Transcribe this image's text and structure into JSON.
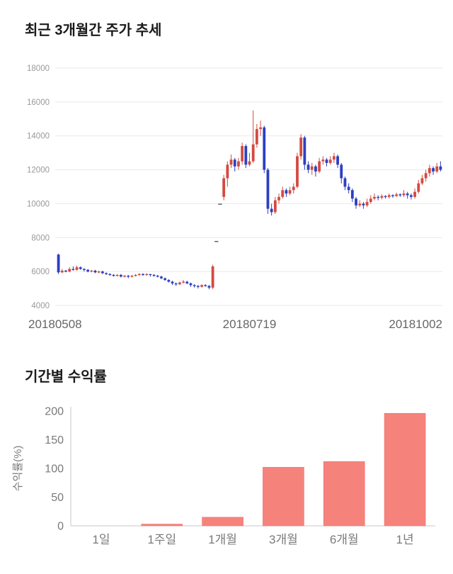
{
  "chart_data": [
    {
      "id": "price_trend",
      "type": "candlestick",
      "title": "최근 3개월간 주가 추세",
      "y_ticks": [
        4000,
        6000,
        8000,
        10000,
        12000,
        14000,
        16000,
        18000
      ],
      "y_range": [
        4000,
        18000
      ],
      "x_labels": [
        "20180508",
        "20180719",
        "20181002"
      ],
      "up_color": "#d24b41",
      "down_color": "#2d3fc0",
      "flat_color": "#555555",
      "grid_color": "#e9e9e9",
      "grid": true,
      "legend": "none",
      "candles": [
        [
          7000,
          7050,
          5850,
          5950
        ],
        [
          5950,
          6150,
          5900,
          6050
        ],
        [
          6050,
          6100,
          5950,
          6000
        ],
        [
          6000,
          6250,
          5950,
          6150
        ],
        [
          6150,
          6300,
          6050,
          6100
        ],
        [
          6100,
          6350,
          6050,
          6250
        ],
        [
          6250,
          6300,
          6100,
          6150
        ],
        [
          6150,
          6200,
          6000,
          6100
        ],
        [
          6100,
          6150,
          5950,
          6000
        ],
        [
          6000,
          6100,
          5950,
          6050
        ],
        [
          6050,
          6100,
          5900,
          5950
        ],
        [
          5950,
          6050,
          5900,
          6000
        ],
        [
          6000,
          6050,
          5850,
          5900
        ],
        [
          5900,
          5950,
          5800,
          5850
        ],
        [
          5850,
          5900,
          5750,
          5800
        ],
        [
          5800,
          5850,
          5700,
          5750
        ],
        [
          5750,
          5850,
          5700,
          5800
        ],
        [
          5800,
          5850,
          5650,
          5700
        ],
        [
          5700,
          5800,
          5650,
          5750
        ],
        [
          5750,
          5800,
          5600,
          5700
        ],
        [
          5700,
          5800,
          5650,
          5750
        ],
        [
          5750,
          5850,
          5700,
          5800
        ],
        [
          5800,
          5900,
          5750,
          5850
        ],
        [
          5850,
          5900,
          5750,
          5800
        ],
        [
          5800,
          5900,
          5750,
          5850
        ],
        [
          5850,
          5850,
          5700,
          5800
        ],
        [
          5800,
          5850,
          5700,
          5750
        ],
        [
          5750,
          5800,
          5650,
          5700
        ],
        [
          5700,
          5750,
          5550,
          5600
        ],
        [
          5600,
          5650,
          5450,
          5500
        ],
        [
          5500,
          5550,
          5350,
          5400
        ],
        [
          5400,
          5450,
          5200,
          5300
        ],
        [
          5300,
          5350,
          5150,
          5250
        ],
        [
          5250,
          5400,
          5200,
          5350
        ],
        [
          5350,
          5500,
          5300,
          5400
        ],
        [
          5400,
          5450,
          5250,
          5300
        ],
        [
          5300,
          5350,
          5100,
          5200
        ],
        [
          5200,
          5250,
          5050,
          5150
        ],
        [
          5150,
          5200,
          5000,
          5100
        ],
        [
          5100,
          5250,
          5050,
          5200
        ],
        [
          5200,
          5250,
          5100,
          5150
        ],
        [
          5150,
          5200,
          4950,
          5050
        ],
        [
          5050,
          6400,
          4950,
          6300
        ],
        [
          7800,
          7800,
          7800,
          7800
        ],
        [
          10000,
          10000,
          10000,
          10000
        ],
        [
          10400,
          11700,
          10200,
          11500
        ],
        [
          11500,
          12500,
          11000,
          12300
        ],
        [
          12300,
          12900,
          12100,
          12600
        ],
        [
          12600,
          12700,
          11900,
          12200
        ],
        [
          12200,
          12700,
          12000,
          12500
        ],
        [
          12500,
          13600,
          12300,
          13400
        ],
        [
          13400,
          13500,
          12100,
          12300
        ],
        [
          12300,
          13000,
          12200,
          12500
        ],
        [
          12500,
          15500,
          12400,
          13500
        ],
        [
          13500,
          14700,
          13300,
          14400
        ],
        [
          14400,
          14900,
          14000,
          14500
        ],
        [
          14500,
          14600,
          11800,
          12000
        ],
        [
          12000,
          12100,
          9400,
          9700
        ],
        [
          9700,
          10000,
          9300,
          9500
        ],
        [
          9500,
          10400,
          9400,
          10200
        ],
        [
          10200,
          10600,
          10000,
          10400
        ],
        [
          10400,
          11000,
          10300,
          10800
        ],
        [
          10800,
          10900,
          10400,
          10600
        ],
        [
          10600,
          11000,
          10500,
          10800
        ],
        [
          10800,
          11200,
          10600,
          11000
        ],
        [
          11000,
          13000,
          10900,
          12800
        ],
        [
          12800,
          14100,
          12600,
          13900
        ],
        [
          13900,
          14000,
          12000,
          12300
        ],
        [
          12300,
          12500,
          11800,
          12000
        ],
        [
          12000,
          12400,
          11700,
          12200
        ],
        [
          12200,
          12300,
          11600,
          11900
        ],
        [
          11900,
          12700,
          11800,
          12500
        ],
        [
          12500,
          12800,
          12300,
          12600
        ],
        [
          12600,
          12700,
          12200,
          12400
        ],
        [
          12400,
          12800,
          12300,
          12600
        ],
        [
          12600,
          13000,
          12400,
          12800
        ],
        [
          12800,
          12900,
          12100,
          12300
        ],
        [
          12300,
          12400,
          11200,
          11500
        ],
        [
          11500,
          11600,
          10800,
          11000
        ],
        [
          11000,
          11200,
          10600,
          10800
        ],
        [
          10800,
          10900,
          10100,
          10300
        ],
        [
          10300,
          10400,
          9700,
          9900
        ],
        [
          9900,
          10200,
          9800,
          10000
        ],
        [
          10000,
          10100,
          9700,
          9900
        ],
        [
          9900,
          10300,
          9800,
          10100
        ],
        [
          10100,
          10500,
          10000,
          10300
        ],
        [
          10300,
          10600,
          10200,
          10400
        ],
        [
          10400,
          10500,
          10200,
          10350
        ],
        [
          10350,
          10550,
          10250,
          10450
        ],
        [
          10450,
          10500,
          10300,
          10400
        ],
        [
          10400,
          10600,
          10300,
          10500
        ],
        [
          10500,
          10550,
          10350,
          10450
        ],
        [
          10450,
          10650,
          10400,
          10550
        ],
        [
          10550,
          10600,
          10400,
          10500
        ],
        [
          10500,
          10800,
          10400,
          10600
        ],
        [
          10600,
          10700,
          10300,
          10500
        ],
        [
          10500,
          10600,
          10250,
          10400
        ],
        [
          10400,
          10900,
          10300,
          10700
        ],
        [
          10700,
          11400,
          10600,
          11200
        ],
        [
          11200,
          11700,
          11100,
          11500
        ],
        [
          11500,
          12000,
          11300,
          11800
        ],
        [
          11800,
          12300,
          11600,
          12100
        ],
        [
          12100,
          12200,
          11700,
          11900
        ],
        [
          11900,
          12400,
          11800,
          12200
        ],
        [
          12200,
          12500,
          11900,
          12000
        ]
      ]
    },
    {
      "id": "period_returns",
      "type": "bar",
      "title": "기간별 수익률",
      "ylabel": "수익률(%)",
      "categories": [
        "1일",
        "1주일",
        "1개월",
        "3개월",
        "6개월",
        "1년"
      ],
      "values": [
        0,
        3,
        15,
        102,
        112,
        196
      ],
      "y_ticks": [
        0,
        50,
        100,
        150,
        200
      ],
      "ylim": [
        0,
        200
      ],
      "bar_color": "#f5837c",
      "bar_edge_color": "#ef726b",
      "axis_color": "#c9c9c9",
      "grid": false,
      "legend": "none"
    }
  ]
}
